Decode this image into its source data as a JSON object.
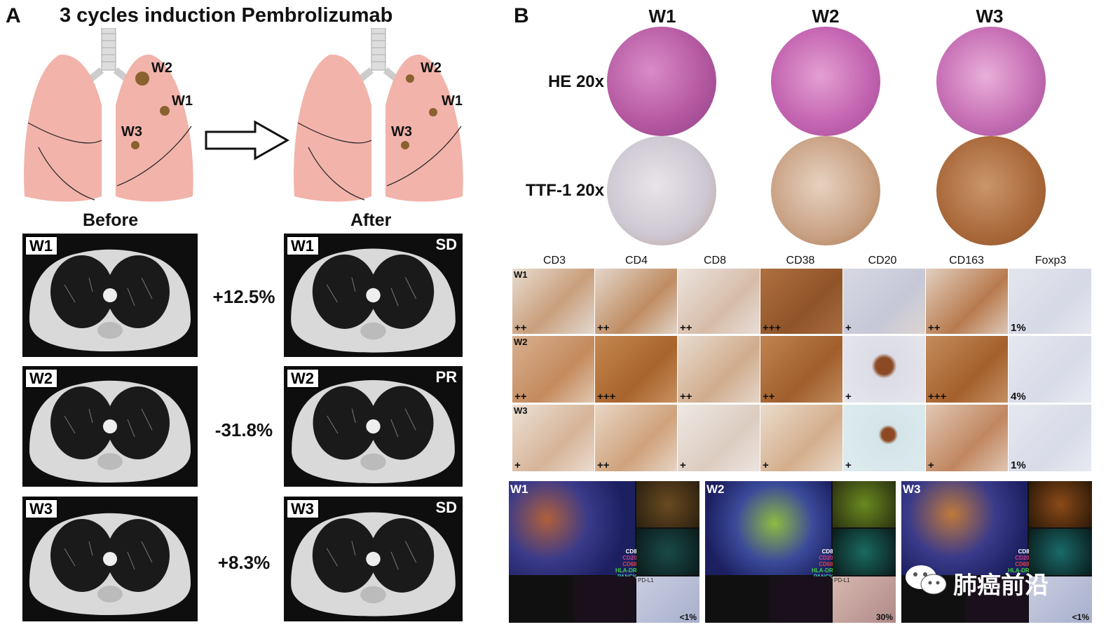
{
  "panel_a": {
    "label": "A",
    "title": "3 cycles induction Pembrolizumab",
    "lung_tumor_labels": [
      "W2",
      "W1",
      "W3"
    ],
    "before_label": "Before",
    "after_label": "After",
    "rows": [
      {
        "tag": "W1",
        "change": "+12.5%",
        "response": "SD"
      },
      {
        "tag": "W2",
        "change": "-31.8%",
        "response": "PR"
      },
      {
        "tag": "W3",
        "change": "+8.3%",
        "response": "SD"
      }
    ]
  },
  "panel_b": {
    "label": "B",
    "columns": [
      "W1",
      "W2",
      "W3"
    ],
    "stain_rows": [
      "HE 20x",
      "TTF-1 20x"
    ],
    "ihc_markers": [
      "CD3",
      "CD4",
      "CD8",
      "CD38",
      "CD20",
      "CD163",
      "Foxp3"
    ],
    "ihc_rows": [
      {
        "tag": "W1",
        "scores": [
          "++",
          "++",
          "++",
          "+++",
          "+",
          "++",
          "1%"
        ]
      },
      {
        "tag": "W2",
        "scores": [
          "++",
          "+++",
          "++",
          "++",
          "+",
          "+++",
          "4%"
        ]
      },
      {
        "tag": "W3",
        "scores": [
          "+",
          "++",
          "+",
          "+",
          "+",
          "+",
          "1%"
        ]
      }
    ],
    "mif": [
      {
        "tag": "W1",
        "pdl1": "<1%"
      },
      {
        "tag": "W2",
        "pdl1": "30%"
      },
      {
        "tag": "W3",
        "pdl1": "<1%"
      }
    ],
    "mif_legend": [
      "CD8",
      "CD20",
      "CD68",
      "HLA-DR",
      "PANCK"
    ],
    "mif_pdl1_label": "PD-L1"
  },
  "watermark": "肺癌前沿",
  "colors": {
    "lung": "#f2b3aa",
    "he": "#c768b0",
    "ttf1": "#c9a68a",
    "ct_bg": "#0e0e0e"
  }
}
